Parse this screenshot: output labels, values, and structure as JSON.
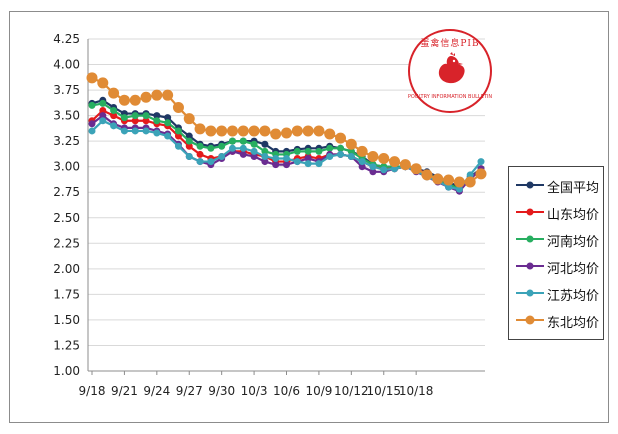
{
  "chart_data": {
    "type": "line",
    "ylim": [
      1.0,
      4.25
    ],
    "yticks": [
      "4.25",
      "4.00",
      "3.75",
      "3.50",
      "3.25",
      "3.00",
      "2.75",
      "2.50",
      "2.25",
      "2.00",
      "1.75",
      "1.50",
      "1.25",
      "1.00"
    ],
    "xtick_labels": [
      "9/18",
      "9/21",
      "9/24",
      "9/27",
      "9/30",
      "10/3",
      "10/6",
      "10/9",
      "10/12",
      "10/15",
      "10/18"
    ],
    "xtick_positions": [
      0,
      3,
      6,
      9,
      12,
      15,
      18,
      21,
      24,
      27,
      30
    ],
    "grid": true,
    "legend_position": "right",
    "series": [
      {
        "name": "全国平均",
        "color": "#1f3864",
        "values": [
          3.62,
          3.65,
          3.58,
          3.52,
          3.52,
          3.52,
          3.5,
          3.48,
          3.38,
          3.3,
          3.22,
          3.2,
          3.22,
          3.25,
          3.25,
          3.25,
          3.22,
          3.15,
          3.15,
          3.17,
          3.18,
          3.18,
          3.2,
          3.18,
          3.15,
          3.1,
          3.02,
          3.0,
          3.0,
          3.0,
          2.98,
          2.95,
          2.9,
          2.85,
          2.8,
          2.9,
          2.98
        ]
      },
      {
        "name": "山东均价",
        "color": "#e41a1c",
        "values": [
          3.45,
          3.55,
          3.5,
          3.45,
          3.45,
          3.45,
          3.42,
          3.4,
          3.3,
          3.2,
          3.12,
          3.08,
          3.1,
          3.15,
          3.15,
          3.12,
          3.1,
          3.05,
          3.05,
          3.08,
          3.1,
          3.08,
          3.12,
          3.12,
          3.1,
          3.05,
          3.0,
          2.98,
          2.98,
          3.0,
          2.98,
          2.93,
          2.88,
          2.82,
          2.78,
          2.88,
          2.97
        ]
      },
      {
        "name": "河南均价",
        "color": "#27ae60",
        "values": [
          3.6,
          3.62,
          3.55,
          3.48,
          3.5,
          3.5,
          3.45,
          3.43,
          3.35,
          3.25,
          3.2,
          3.18,
          3.2,
          3.25,
          3.25,
          3.22,
          3.15,
          3.12,
          3.12,
          3.15,
          3.15,
          3.15,
          3.18,
          3.18,
          3.15,
          3.08,
          3.02,
          3.0,
          3.0,
          3.0,
          2.97,
          2.93,
          2.88,
          2.83,
          2.78,
          2.88,
          2.98
        ]
      },
      {
        "name": "河北均价",
        "color": "#6a2c91",
        "values": [
          3.42,
          3.5,
          3.42,
          3.38,
          3.38,
          3.38,
          3.35,
          3.32,
          3.22,
          3.1,
          3.05,
          3.02,
          3.08,
          3.15,
          3.12,
          3.1,
          3.05,
          3.02,
          3.02,
          3.05,
          3.08,
          3.05,
          3.12,
          3.12,
          3.1,
          3.0,
          2.95,
          2.95,
          2.98,
          3.0,
          2.95,
          2.9,
          2.85,
          2.8,
          2.76,
          2.88,
          2.98
        ]
      },
      {
        "name": "江苏均价",
        "color": "#3ba3b8",
        "values": [
          3.35,
          3.45,
          3.4,
          3.35,
          3.35,
          3.35,
          3.33,
          3.3,
          3.2,
          3.1,
          3.05,
          3.05,
          3.1,
          3.18,
          3.18,
          3.15,
          3.1,
          3.08,
          3.08,
          3.05,
          3.03,
          3.03,
          3.1,
          3.12,
          3.1,
          3.05,
          3.0,
          2.97,
          2.98,
          3.0,
          2.96,
          2.9,
          2.86,
          2.8,
          2.78,
          2.92,
          3.05
        ]
      },
      {
        "name": "东北均价",
        "color": "#e08b35",
        "values": [
          3.87,
          3.82,
          3.72,
          3.65,
          3.65,
          3.68,
          3.7,
          3.7,
          3.58,
          3.47,
          3.37,
          3.35,
          3.35,
          3.35,
          3.35,
          3.35,
          3.35,
          3.32,
          3.33,
          3.35,
          3.35,
          3.35,
          3.32,
          3.28,
          3.22,
          3.15,
          3.1,
          3.08,
          3.05,
          3.02,
          2.98,
          2.92,
          2.88,
          2.87,
          2.85,
          2.85,
          2.93
        ]
      }
    ]
  },
  "logo": {
    "title": "蛋禽信息PIB",
    "subtitle": "POULTRY INFORMATION BULLETIN"
  }
}
